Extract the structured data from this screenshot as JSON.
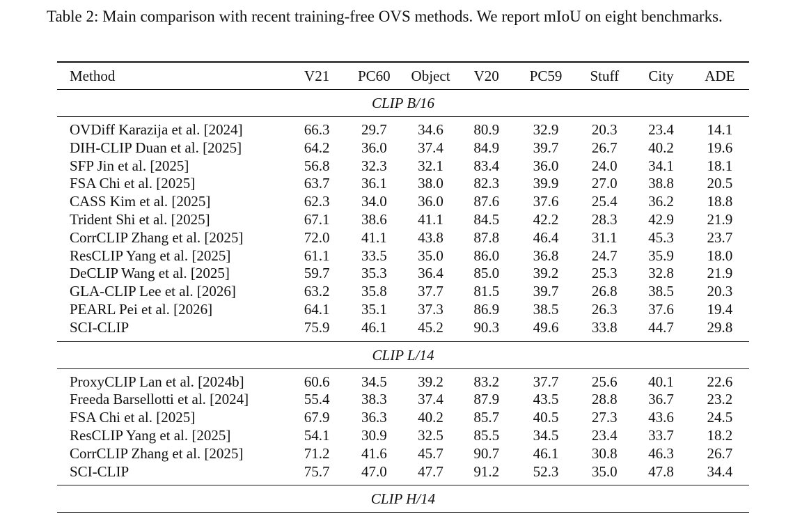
{
  "caption": "Table 2: Main comparison with recent training-free OVS methods. We report mIoU on eight benchmarks.",
  "columns": [
    "Method",
    "V21",
    "PC60",
    "Object",
    "V20",
    "PC59",
    "Stuff",
    "City",
    "ADE"
  ],
  "sections": [
    {
      "label": "CLIP B/16",
      "rows": [
        {
          "method": "OVDiff Karazija et al. [2024]",
          "values": [
            "66.3",
            "29.7",
            "34.6",
            "80.9",
            "32.9",
            "20.3",
            "23.4",
            "14.1"
          ],
          "bold": []
        },
        {
          "method": "DIH-CLIP Duan et al. [2025]",
          "values": [
            "64.2",
            "36.0",
            "37.4",
            "84.9",
            "39.7",
            "26.7",
            "40.2",
            "19.6"
          ],
          "bold": []
        },
        {
          "method": "SFP Jin et al. [2025]",
          "values": [
            "56.8",
            "32.3",
            "32.1",
            "83.4",
            "36.0",
            "24.0",
            "34.1",
            "18.1"
          ],
          "bold": []
        },
        {
          "method": "FSA Chi et al. [2025]",
          "values": [
            "63.7",
            "36.1",
            "38.0",
            "82.3",
            "39.9",
            "27.0",
            "38.8",
            "20.5"
          ],
          "bold": []
        },
        {
          "method": "CASS Kim et al. [2025]",
          "values": [
            "62.3",
            "34.0",
            "36.0",
            "87.6",
            "37.6",
            "25.4",
            "36.2",
            "18.8"
          ],
          "bold": []
        },
        {
          "method": "Trident Shi et al. [2025]",
          "values": [
            "67.1",
            "38.6",
            "41.1",
            "84.5",
            "42.2",
            "28.3",
            "42.9",
            "21.9"
          ],
          "bold": []
        },
        {
          "method": "CorrCLIP Zhang et al. [2025]",
          "values": [
            "72.0",
            "41.1",
            "43.8",
            "87.8",
            "46.4",
            "31.1",
            "45.3",
            "23.7"
          ],
          "bold": [
            6
          ]
        },
        {
          "method": "ResCLIP Yang et al. [2025]",
          "values": [
            "61.1",
            "33.5",
            "35.0",
            "86.0",
            "36.8",
            "24.7",
            "35.9",
            "18.0"
          ],
          "bold": []
        },
        {
          "method": "DeCLIP Wang et al. [2025]",
          "values": [
            "59.7",
            "35.3",
            "36.4",
            "85.0",
            "39.2",
            "25.3",
            "32.8",
            "21.9"
          ],
          "bold": []
        },
        {
          "method": "GLA-CLIP Lee et al. [2026]",
          "values": [
            "63.2",
            "35.8",
            "37.7",
            "81.5",
            "39.7",
            "26.8",
            "38.5",
            "20.3"
          ],
          "bold": []
        },
        {
          "method": "PEARL Pei et al. [2026]",
          "values": [
            "64.1",
            "35.1",
            "37.3",
            "86.9",
            "38.5",
            "26.3",
            "37.6",
            "19.4"
          ],
          "bold": []
        },
        {
          "method": "SCI-CLIP",
          "values": [
            "75.9",
            "46.1",
            "45.2",
            "90.3",
            "49.6",
            "33.8",
            "44.7",
            "29.8"
          ],
          "bold": [
            0,
            1,
            2,
            3,
            4,
            5,
            7
          ]
        }
      ]
    },
    {
      "label": "CLIP L/14",
      "rows": [
        {
          "method": "ProxyCLIP Lan et al. [2024b]",
          "values": [
            "60.6",
            "34.5",
            "39.2",
            "83.2",
            "37.7",
            "25.6",
            "40.1",
            "22.6"
          ],
          "bold": []
        },
        {
          "method": "Freeda Barsellotti et al. [2024]",
          "values": [
            "55.4",
            "38.3",
            "37.4",
            "87.9",
            "43.5",
            "28.8",
            "36.7",
            "23.2"
          ],
          "bold": []
        },
        {
          "method": "FSA Chi et al. [2025]",
          "values": [
            "67.9",
            "36.3",
            "40.2",
            "85.7",
            "40.5",
            "27.3",
            "43.6",
            "24.5"
          ],
          "bold": []
        },
        {
          "method": "ResCLIP Yang et al. [2025]",
          "values": [
            "54.1",
            "30.9",
            "32.5",
            "85.5",
            "34.5",
            "23.4",
            "33.7",
            "18.2"
          ],
          "bold": []
        },
        {
          "method": "CorrCLIP Zhang et al. [2025]",
          "values": [
            "71.2",
            "41.6",
            "45.7",
            "90.7",
            "46.1",
            "30.8",
            "46.3",
            "26.7"
          ],
          "bold": []
        },
        {
          "method": "SCI-CLIP",
          "values": [
            "75.7",
            "47.0",
            "47.7",
            "91.2",
            "52.3",
            "35.0",
            "47.8",
            "34.4"
          ],
          "bold": [
            0,
            1,
            2,
            3,
            4,
            5,
            6,
            7
          ]
        }
      ]
    },
    {
      "label": "CLIP H/14",
      "rows": []
    }
  ]
}
